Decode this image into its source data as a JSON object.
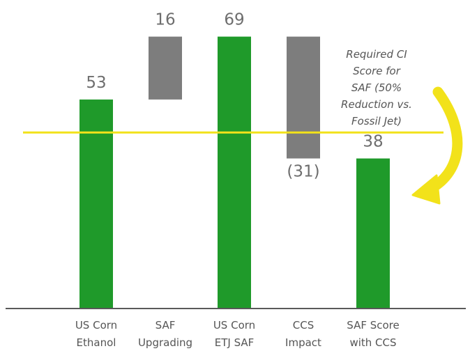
{
  "chart_data": {
    "type": "bar",
    "subtype": "waterfall",
    "categories": [
      [
        "US Corn",
        "Ethanol"
      ],
      [
        "SAF",
        "Upgrading"
      ],
      [
        "US Corn",
        "ETJ SAF"
      ],
      [
        "CCS",
        "Impact"
      ],
      [
        "SAF Score",
        "with CCS"
      ]
    ],
    "bars": [
      {
        "kind": "total",
        "start": 0,
        "end": 53,
        "value_label": "53"
      },
      {
        "kind": "delta",
        "start": 53,
        "end": 69,
        "value_label": "16"
      },
      {
        "kind": "total",
        "start": 0,
        "end": 69,
        "value_label": "69"
      },
      {
        "kind": "delta",
        "start": 69,
        "end": 38,
        "value_label": "(31)"
      },
      {
        "kind": "total",
        "start": 0,
        "end": 38,
        "value_label": "38"
      }
    ],
    "threshold": {
      "value": 44.6,
      "annotation": [
        "Required CI",
        "Score for",
        "SAF (50%",
        "Reduction vs.",
        "Fossil Jet)"
      ]
    },
    "ylim": [
      0,
      73
    ],
    "colors": {
      "total": "#1f9a2a",
      "delta": "#7d7d7d",
      "threshold": "#f2e21a",
      "arrow": "#f2e21a",
      "axis": "#222222"
    }
  }
}
